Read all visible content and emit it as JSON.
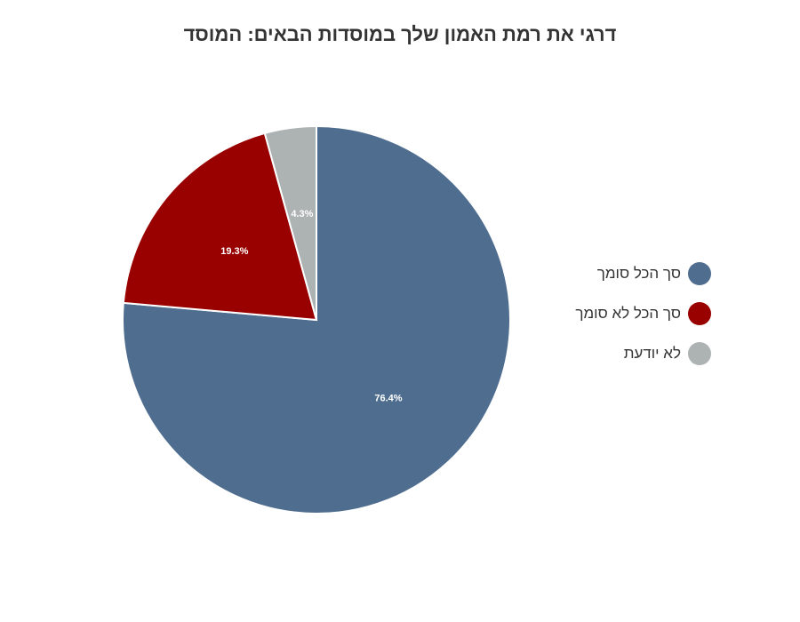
{
  "chart_data": {
    "type": "pie",
    "title": "דרגי את רמת האמון שלך במוסדות הבאים: המוסד",
    "slices": [
      {
        "label": "סך הכל סומך",
        "value": 76.4,
        "value_label": "76.4%",
        "color": "#4f6d8f"
      },
      {
        "label": "סך הכל לא סומך",
        "value": 19.3,
        "value_label": "19.3%",
        "color": "#990000"
      },
      {
        "label": "לא יודעת",
        "value": 4.3,
        "value_label": "4.3%",
        "color": "#adb2b3"
      }
    ],
    "legend_position": "right"
  }
}
